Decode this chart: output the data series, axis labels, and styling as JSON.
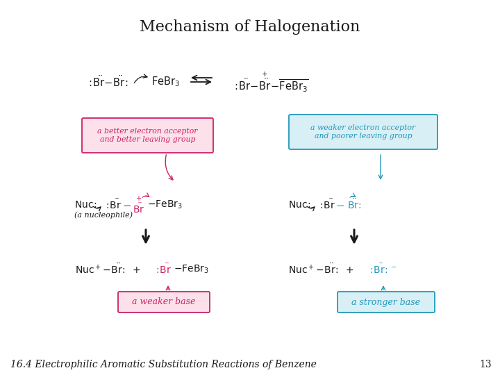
{
  "title": "Mechanism of Halogenation",
  "title_fontsize": 16,
  "title_fontweight": "normal",
  "footer_text": "16.4 Electrophilic Aromatic Substitution Reactions of Benzene",
  "footer_page": "13",
  "footer_fontsize": 10,
  "bg_color": "#ffffff",
  "text_color": "#1a1a1a",
  "pink_color": "#cc2266",
  "blue_color": "#2299bb",
  "pink_box_fill": "#fce0ea",
  "pink_box_edge": "#cc2266",
  "blue_box_fill": "#d8eff5",
  "blue_box_edge": "#2299bb",
  "box1_text": "a better electron acceptor\nand better leaving group",
  "box2_text": "a weaker electron acceptor\nand poorer leaving group",
  "box3_text": "a weaker base",
  "box4_text": "a stronger base"
}
